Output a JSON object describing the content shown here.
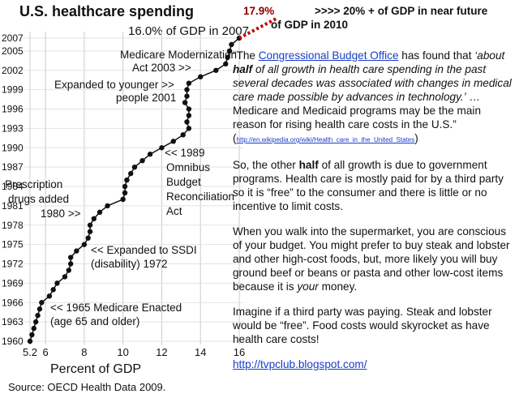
{
  "chart_data": {
    "type": "line",
    "title": "U.S. healthcare spending",
    "subtitle": "16.0% of GDP in 2007",
    "x_label": "Percent of GDP",
    "source": "Source: OECD Health Data 2009.",
    "years": [
      1960,
      1961,
      1962,
      1963,
      1964,
      1965,
      1966,
      1967,
      1968,
      1969,
      1970,
      1971,
      1972,
      1973,
      1974,
      1975,
      1976,
      1977,
      1978,
      1979,
      1980,
      1981,
      1982,
      1983,
      1984,
      1985,
      1986,
      1987,
      1988,
      1989,
      1990,
      1991,
      1992,
      1993,
      1994,
      1995,
      1996,
      1997,
      1998,
      1999,
      2000,
      2001,
      2002,
      2003,
      2004,
      2005,
      2006,
      2007
    ],
    "values": [
      5.2,
      5.3,
      5.4,
      5.5,
      5.6,
      5.7,
      5.8,
      6.2,
      6.4,
      6.6,
      7.0,
      7.2,
      7.3,
      7.3,
      7.6,
      8.0,
      8.2,
      8.3,
      8.3,
      8.5,
      8.8,
      9.2,
      10.0,
      10.1,
      10.1,
      10.2,
      10.4,
      10.6,
      11.0,
      11.4,
      12.0,
      12.6,
      13.1,
      13.4,
      13.3,
      13.4,
      13.4,
      13.2,
      13.3,
      13.3,
      13.4,
      14.0,
      14.8,
      15.3,
      15.4,
      15.5,
      15.6,
      16.0
    ],
    "color": "#111111",
    "projection": {
      "values": [
        16.0,
        17.9
      ],
      "years": [
        2007,
        2010
      ],
      "color": "#c00000"
    },
    "xlim": [
      5.2,
      16
    ],
    "xticks": [
      5.2,
      6,
      8,
      10,
      12,
      14,
      16
    ],
    "ylim": [
      1960,
      2007
    ],
    "yticks": [
      1960,
      1963,
      1966,
      1969,
      1972,
      1975,
      1978,
      1981,
      1984,
      1987,
      1990,
      1993,
      1996,
      1999,
      2002,
      2005,
      2007
    ],
    "grid": true,
    "annotations": [
      [
        "17.9%"
      ],
      [
        ">>>> 20% + of GDP in near future",
        "of GDP in 2010"
      ],
      [
        "Medicare Modernization",
        "Act 2003 >>"
      ],
      [
        "Expanded to younger >>",
        "people 2001"
      ],
      [
        "<< 1989",
        "Omnibus",
        "Budget",
        "Reconciliation",
        "Act"
      ],
      [
        "Prescription",
        "drugs added",
        "1980 >>"
      ],
      [
        "<< Expanded to SSDI",
        "(disability) 1972"
      ],
      [
        "<< 1965 Medicare Enacted",
        "(age 65 and older)"
      ]
    ]
  },
  "text_panel": {
    "paragraphs": [
      [
        "“The ",
        "Congressional Budget Office",
        " has found that ",
        "‘about ",
        "half",
        " of all growth in health care spending in the past several decades was associated with changes in medical care made possible by advances in technology.’",
        " … Medicare and Medicaid programs may be the main reason for rising health care costs in the U.S.” (",
        "http://en.wikipedia.org/wiki/Health_care_in_the_United_States",
        ")"
      ],
      [
        "So, the other ",
        "half",
        " of all growth is due to government programs. Health care is mostly paid for by a third party so it is “free” to the consumer and there is little or no incentive to limit costs."
      ],
      [
        "When you walk into the supermarket, you are conscious of your budget. You might prefer to buy steak and lobster and other high-cost foods, but, more likely you will buy ground beef or beans or pasta and other low-cost items because it is ",
        "your",
        " money."
      ],
      [
        "Imagine if a third party was paying. Steak and lobster would be “free”. Food costs would skyrocket as have health care costs!"
      ],
      [
        "http://tvpclub.blogspot.com/"
      ]
    ]
  }
}
